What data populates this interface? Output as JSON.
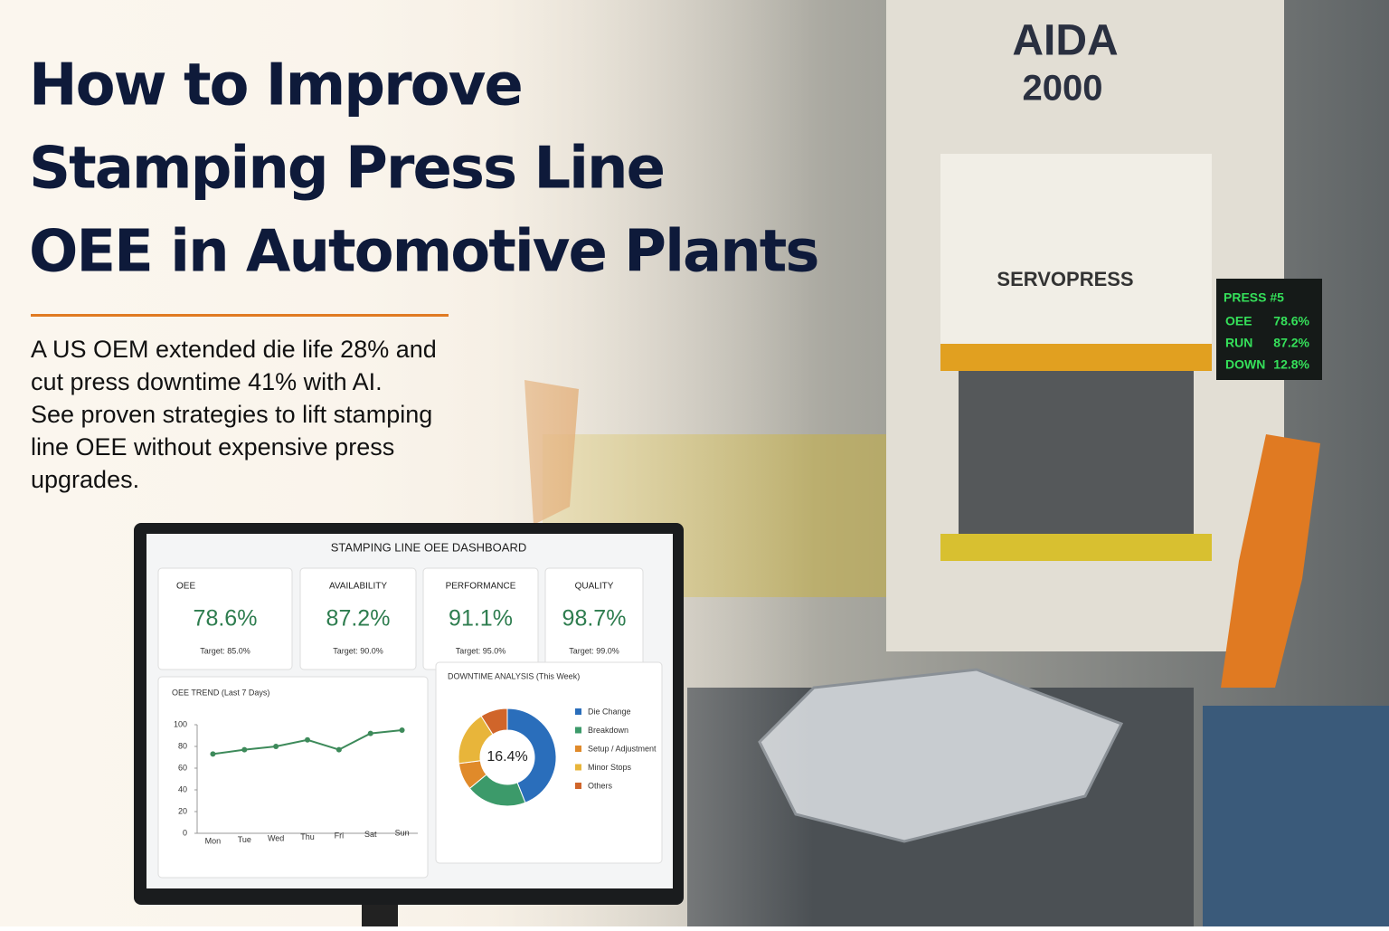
{
  "header": {
    "title_lines": [
      "How to Improve",
      "Stamping Press Line",
      "OEE in Automotive Plants"
    ],
    "subtitle_lines": [
      "A US OEM extended die life 28% and",
      "cut press downtime 41% with AI.",
      "See proven strategies to lift stamping",
      "line OEE without expensive press",
      "upgrades."
    ]
  },
  "scene": {
    "press_brand": "AIDA",
    "press_model": "2000",
    "press_label": "SERVOPRESS",
    "display": {
      "title": "PRESS #5",
      "rows": [
        [
          "OEE",
          "78.6%"
        ],
        [
          "RUN",
          "87.2%"
        ],
        [
          "DOWN",
          "12.8%"
        ]
      ]
    }
  },
  "dashboard": {
    "title": "STAMPING LINE OEE DASHBOARD",
    "kpis": [
      {
        "label": "OEE",
        "value": "78.6%",
        "target": "Target: 85.0%"
      },
      {
        "label": "AVAILABILITY",
        "value": "87.2%",
        "target": "Target: 90.0%"
      },
      {
        "label": "PERFORMANCE",
        "value": "91.1%",
        "target": "Target: 95.0%"
      },
      {
        "label": "QUALITY",
        "value": "98.7%",
        "target": "Target: 99.0%"
      }
    ],
    "chart_data": [
      {
        "type": "line",
        "title": "OEE TREND (Last 7 Days)",
        "categories": [
          "Mon",
          "Tue",
          "Wed",
          "Thu",
          "Fri",
          "Sat",
          "Sun"
        ],
        "values": [
          73,
          77,
          80,
          86,
          77,
          92,
          95
        ],
        "color": "#3d8a5a",
        "ylim": [
          0,
          100
        ],
        "yticks": [
          0,
          20,
          40,
          60,
          80,
          100
        ],
        "grid": false
      },
      {
        "type": "pie",
        "title": "DOWNTIME ANALYSIS (This Week)",
        "center_label": "16.4%",
        "categories": [
          "Die Change",
          "Breakdown",
          "Setup / Adjustment",
          "Minor Stops",
          "Others"
        ],
        "values": [
          44,
          20,
          9,
          18,
          9
        ],
        "colors": [
          "#2a6ebb",
          "#3c9a6a",
          "#e08a2a",
          "#e8b53a",
          "#d0652a"
        ]
      }
    ]
  }
}
